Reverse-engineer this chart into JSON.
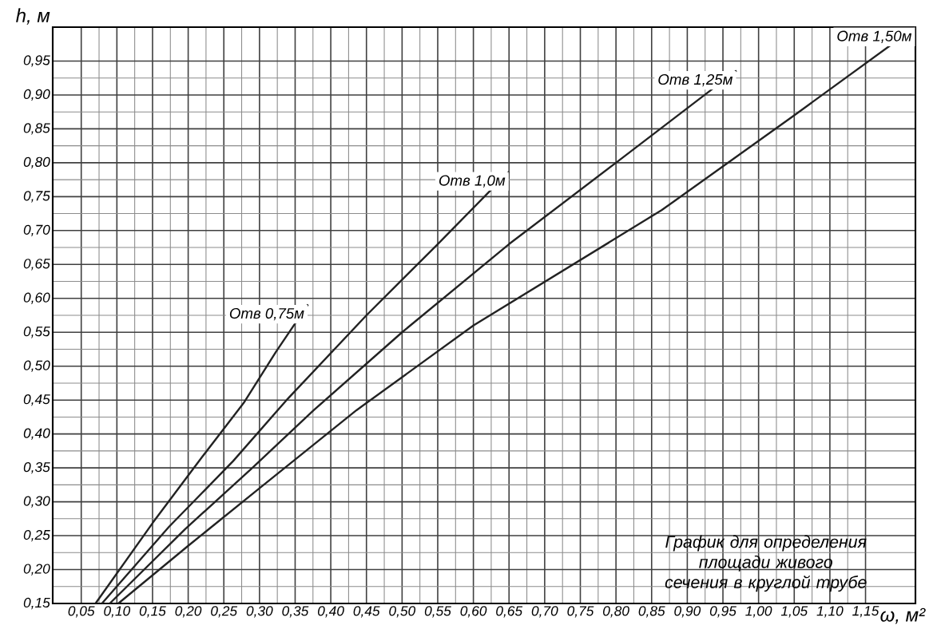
{
  "chart_data": {
    "type": "line",
    "xlabel": "ω, м²",
    "ylabel": "h, м",
    "xlim": [
      0.01,
      1.22
    ],
    "ylim": [
      0.15,
      1.0
    ],
    "xticks": [
      {
        "value": 0.05,
        "label": "0,05"
      },
      {
        "value": 0.1,
        "label": "0,10"
      },
      {
        "value": 0.15,
        "label": "0,15"
      },
      {
        "value": 0.2,
        "label": "0,20"
      },
      {
        "value": 0.25,
        "label": "0,25"
      },
      {
        "value": 0.3,
        "label": "0,30"
      },
      {
        "value": 0.35,
        "label": "0,35"
      },
      {
        "value": 0.4,
        "label": "0,40"
      },
      {
        "value": 0.45,
        "label": "0,45"
      },
      {
        "value": 0.5,
        "label": "0,50"
      },
      {
        "value": 0.55,
        "label": "0,55"
      },
      {
        "value": 0.6,
        "label": "0,60"
      },
      {
        "value": 0.65,
        "label": "0,65"
      },
      {
        "value": 0.7,
        "label": "0,70"
      },
      {
        "value": 0.75,
        "label": "0,75"
      },
      {
        "value": 0.8,
        "label": "0,80"
      },
      {
        "value": 0.85,
        "label": "0,85"
      },
      {
        "value": 0.9,
        "label": "0,90"
      },
      {
        "value": 0.95,
        "label": "0,95"
      },
      {
        "value": 1.0,
        "label": "1,00"
      },
      {
        "value": 1.05,
        "label": "1,05"
      },
      {
        "value": 1.1,
        "label": "1,10"
      },
      {
        "value": 1.15,
        "label": "1,15"
      }
    ],
    "yticks": [
      {
        "value": 0.15,
        "label": "0,15"
      },
      {
        "value": 0.2,
        "label": "0,20"
      },
      {
        "value": 0.25,
        "label": "0,25"
      },
      {
        "value": 0.3,
        "label": "0,30"
      },
      {
        "value": 0.35,
        "label": "0,35"
      },
      {
        "value": 0.4,
        "label": "0,40"
      },
      {
        "value": 0.45,
        "label": "0,45"
      },
      {
        "value": 0.5,
        "label": "0,50"
      },
      {
        "value": 0.55,
        "label": "0,55"
      },
      {
        "value": 0.6,
        "label": "0,60"
      },
      {
        "value": 0.65,
        "label": "0,65"
      },
      {
        "value": 0.7,
        "label": "0,70"
      },
      {
        "value": 0.75,
        "label": "0,75"
      },
      {
        "value": 0.8,
        "label": "0,80"
      },
      {
        "value": 0.85,
        "label": "0,85"
      },
      {
        "value": 0.9,
        "label": "0,90"
      },
      {
        "value": 0.95,
        "label": "0,95"
      }
    ],
    "grid": true,
    "marker": "none",
    "line_style": "solid",
    "series": [
      {
        "name": "Отв 0,75м",
        "color": "#222222",
        "x": [
          0.07,
          0.151,
          0.218,
          0.278,
          0.323,
          0.368
        ],
        "values": [
          0.15,
          0.27,
          0.364,
          0.446,
          0.521,
          0.591
        ]
      },
      {
        "name": "Отв 1,0м",
        "color": "#222222",
        "x": [
          0.079,
          0.173,
          0.263,
          0.338,
          0.45,
          0.55,
          0.65
        ],
        "values": [
          0.15,
          0.263,
          0.36,
          0.45,
          0.575,
          0.68,
          0.787
        ]
      },
      {
        "name": "Отв 1,25м",
        "color": "#222222",
        "x": [
          0.09,
          0.196,
          0.29,
          0.376,
          0.5,
          0.65,
          0.8,
          0.969
        ],
        "values": [
          0.15,
          0.26,
          0.35,
          0.435,
          0.55,
          0.68,
          0.8,
          0.936
        ]
      },
      {
        "name": "Отв 1,50м",
        "color": "#222222",
        "x": [
          0.102,
          0.2,
          0.3,
          0.436,
          0.6,
          0.864,
          1.05,
          1.22
        ],
        "values": [
          0.15,
          0.235,
          0.32,
          0.435,
          0.56,
          0.73,
          0.87,
          1.0
        ]
      }
    ],
    "annotations": [
      "График для определения площади живого сечения в круглой трубе"
    ]
  }
}
